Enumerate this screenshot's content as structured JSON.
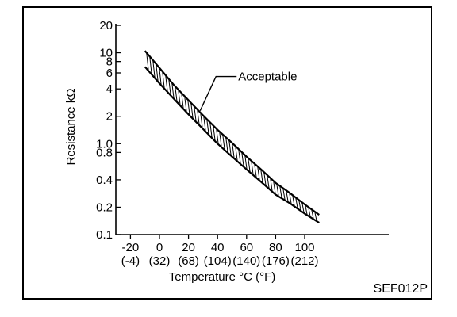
{
  "figure_code": "SEF012P",
  "chart_data": {
    "type": "line",
    "title": "",
    "ylabel": "Resistance kΩ",
    "xlabel": "Temperature °C (°F)",
    "y_scale": "log",
    "ylim": [
      0.1,
      20
    ],
    "xlim": [
      -30,
      120
    ],
    "grid": false,
    "legend": "none",
    "y_ticks": [
      {
        "value": 20,
        "label": "20"
      },
      {
        "value": 10,
        "label": "10"
      },
      {
        "value": 8,
        "label": "8"
      },
      {
        "value": 6,
        "label": "6"
      },
      {
        "value": 4,
        "label": "4"
      },
      {
        "value": 2,
        "label": "2"
      },
      {
        "value": 1.0,
        "label": "1.0"
      },
      {
        "value": 0.8,
        "label": "0.8"
      },
      {
        "value": 0.4,
        "label": "0.4"
      },
      {
        "value": 0.2,
        "label": "0.2"
      },
      {
        "value": 0.1,
        "label": "0.1"
      }
    ],
    "x_ticks": [
      {
        "value": -20,
        "label": "-20",
        "label2": "(-4)"
      },
      {
        "value": 0,
        "label": "0",
        "label2": "(32)"
      },
      {
        "value": 20,
        "label": "20",
        "label2": "(68)"
      },
      {
        "value": 40,
        "label": "40",
        "label2": "(104)"
      },
      {
        "value": 60,
        "label": "60",
        "label2": "(140)"
      },
      {
        "value": 80,
        "label": "80",
        "label2": "(176)"
      },
      {
        "value": 100,
        "label": "100",
        "label2": "(212)"
      }
    ],
    "band": {
      "upper": {
        "x": [
          -10,
          0,
          10,
          20,
          30,
          40,
          50,
          60,
          70,
          80,
          90,
          100,
          110
        ],
        "y": [
          10.5,
          6.8,
          4.4,
          3.0,
          2.05,
          1.42,
          1.02,
          0.72,
          0.52,
          0.37,
          0.285,
          0.215,
          0.165
        ]
      },
      "lower": {
        "x": [
          -10,
          0,
          10,
          20,
          30,
          40,
          50,
          60,
          70,
          80,
          90,
          100,
          110
        ],
        "y": [
          7.0,
          4.6,
          3.1,
          2.1,
          1.45,
          1.0,
          0.72,
          0.52,
          0.38,
          0.275,
          0.22,
          0.17,
          0.135
        ]
      }
    },
    "annotation": {
      "text": "Acceptable",
      "x": 28,
      "y": 2.3
    }
  }
}
